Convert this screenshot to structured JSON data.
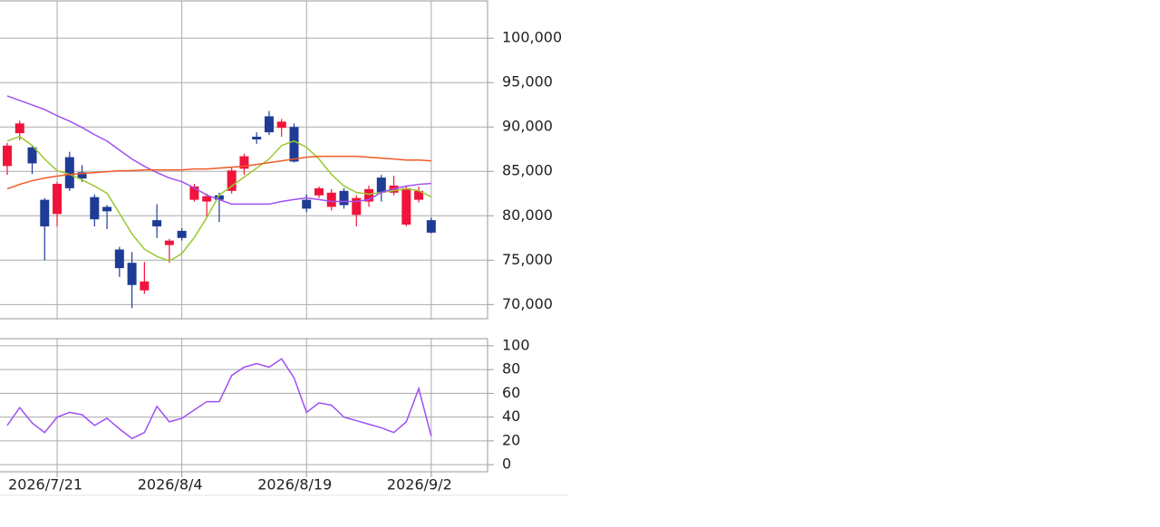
{
  "chart_data": [
    {
      "type": "candlestick",
      "up_color": "#f0143c",
      "down_color": "#1e3c96",
      "ylim": [
        68400,
        104200
      ],
      "grid": true,
      "yticks": [
        {
          "value": 70000,
          "label": "70,000"
        },
        {
          "value": 75000,
          "label": "75,000"
        },
        {
          "value": 80000,
          "label": "80,000"
        },
        {
          "value": 85000,
          "label": "85,000"
        },
        {
          "value": 90000,
          "label": "90,000"
        },
        {
          "value": 95000,
          "label": "95,000"
        },
        {
          "value": 100000,
          "label": "100,000"
        }
      ],
      "open": [
        85600,
        89300,
        87700,
        81800,
        80200,
        86600,
        84900,
        82100,
        81000,
        76200,
        74700,
        71600,
        79500,
        76700,
        78300,
        81800,
        81600,
        82300,
        82800,
        85300,
        88900,
        91200,
        89900,
        90000,
        81800,
        82300,
        81000,
        82800,
        80100,
        81600,
        84300,
        82600,
        79000,
        81800,
        79500
      ],
      "high": [
        88200,
        90700,
        87900,
        82000,
        83800,
        87200,
        85700,
        82400,
        81200,
        76500,
        75900,
        74800,
        81300,
        77400,
        78600,
        83600,
        82500,
        82600,
        85400,
        87000,
        89400,
        91800,
        90900,
        90400,
        82400,
        83300,
        83000,
        83100,
        82300,
        83400,
        84600,
        84500,
        83400,
        83300,
        79800
      ],
      "low": [
        84600,
        88500,
        84700,
        75000,
        78800,
        82800,
        83800,
        78800,
        78500,
        73100,
        69600,
        71200,
        77500,
        74700,
        77200,
        81600,
        79800,
        79300,
        82500,
        84600,
        88100,
        89100,
        88900,
        86000,
        80400,
        82000,
        80600,
        80800,
        78800,
        81000,
        81600,
        82300,
        78800,
        81500,
        78000
      ],
      "close": [
        87900,
        90400,
        85900,
        78800,
        83600,
        83100,
        84200,
        79600,
        80500,
        74100,
        72200,
        72600,
        78800,
        77200,
        77500,
        83300,
        82200,
        81800,
        85100,
        86700,
        88600,
        89400,
        90600,
        86100,
        80800,
        83100,
        82600,
        81200,
        82000,
        83000,
        82600,
        83400,
        83100,
        82800,
        78100
      ],
      "series": [
        {
          "color": "#9ac832",
          "values": [
            88420,
            88930,
            87910,
            86390,
            85070,
            84660,
            84050,
            83340,
            82530,
            80290,
            77960,
            76230,
            75420,
            74910,
            75730,
            77550,
            79790,
            82330,
            83340,
            84360,
            85370,
            86390,
            87910,
            88420,
            87710,
            86390,
            84660,
            83340,
            82630,
            82430,
            82630,
            82830,
            83040,
            82830,
            82120
          ]
        },
        {
          "color": "#a050f0",
          "values": [
            93500,
            92990,
            92480,
            91970,
            91260,
            90650,
            89940,
            89130,
            88420,
            87400,
            86390,
            85570,
            84860,
            84250,
            83850,
            83140,
            82330,
            81820,
            81310,
            81310,
            81310,
            81310,
            81610,
            81820,
            82020,
            81820,
            81610,
            81610,
            81610,
            81820,
            82630,
            83040,
            83340,
            83540,
            83640
          ]
        },
        {
          "color": "#f05a28",
          "values": [
            83030,
            83540,
            83950,
            84250,
            84460,
            84660,
            84760,
            84860,
            84960,
            85070,
            85070,
            85170,
            85170,
            85170,
            85170,
            85270,
            85270,
            85370,
            85470,
            85570,
            85780,
            85980,
            86180,
            86390,
            86590,
            86690,
            86690,
            86690,
            86690,
            86590,
            86490,
            86390,
            86280,
            86280,
            86180
          ]
        }
      ]
    },
    {
      "type": "line",
      "ylim": [
        -6,
        106
      ],
      "grid": true,
      "yticks": [
        0,
        20,
        40,
        60,
        80,
        100
      ],
      "categories": [
        null,
        null,
        null,
        null,
        "2026/7/21",
        null,
        null,
        null,
        null,
        null,
        null,
        null,
        null,
        null,
        "2026/8/4",
        null,
        null,
        null,
        null,
        null,
        null,
        null,
        null,
        null,
        "2026/8/19",
        null,
        null,
        null,
        null,
        null,
        null,
        null,
        null,
        null,
        "2026/9/2"
      ],
      "series": [
        {
          "color": "#a050f0",
          "values": [
            33,
            48,
            35,
            27,
            40,
            44,
            42,
            33,
            39,
            30,
            22,
            27,
            49,
            36,
            39,
            46,
            53,
            53,
            75,
            82,
            85,
            82,
            89,
            73,
            44,
            52,
            50,
            40,
            37,
            34,
            31,
            27,
            36,
            64,
            24
          ]
        }
      ]
    }
  ]
}
